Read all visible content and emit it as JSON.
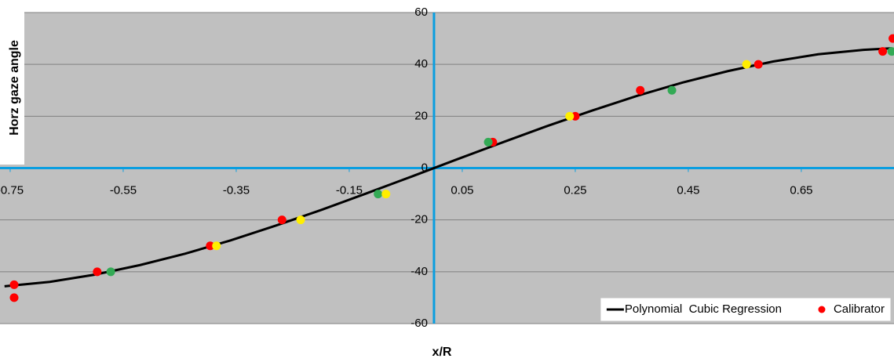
{
  "chart_data": {
    "type": "scatter",
    "x_label": "x/R",
    "y_label": "Horz gaze angle",
    "xlim": [
      -0.768,
      0.814
    ],
    "ylim": [
      -60,
      60
    ],
    "xticks": [
      -0.75,
      -0.55,
      -0.35,
      -0.15,
      0.05,
      0.25,
      0.45,
      0.65
    ],
    "yticks": [
      -60,
      -40,
      -20,
      0,
      20,
      40,
      60
    ],
    "grid": true,
    "legend": "lower right",
    "series": [
      {
        "name": "Polynomial  Cubic Regression",
        "type": "line",
        "color": "#000000",
        "x": [
          -0.76,
          -0.68,
          -0.6,
          -0.52,
          -0.44,
          -0.36,
          -0.28,
          -0.2,
          -0.12,
          -0.04,
          0.04,
          0.12,
          0.2,
          0.28,
          0.36,
          0.44,
          0.52,
          0.6,
          0.68,
          0.76,
          0.81
        ],
        "values": [
          -45.6,
          -43.9,
          -41.1,
          -37.4,
          -33.0,
          -27.9,
          -22.2,
          -16.2,
          -9.8,
          -3.3,
          3.3,
          9.8,
          16.2,
          22.2,
          27.9,
          33.0,
          37.4,
          41.1,
          43.9,
          45.6,
          46.2
        ]
      },
      {
        "name": "Calibrator",
        "color": "#ff0000",
        "x": [
          -0.743,
          -0.743,
          -0.596,
          -0.396,
          -0.269,
          0.104,
          0.25,
          0.365,
          0.574,
          0.794,
          0.812
        ],
        "values": [
          -45,
          -50,
          -40,
          -30,
          -20,
          10,
          20,
          30,
          40,
          45,
          50
        ]
      },
      {
        "color": "#33aa55",
        "x": [
          -0.572,
          -0.099,
          0.096,
          0.421,
          0.81
        ],
        "values": [
          -40,
          -10,
          10,
          30,
          45
        ]
      },
      {
        "color": "#ffee00",
        "x": [
          -0.385,
          -0.236,
          -0.085,
          0.24,
          0.553
        ],
        "values": [
          -30,
          -20,
          -10,
          20,
          40
        ]
      }
    ]
  }
}
